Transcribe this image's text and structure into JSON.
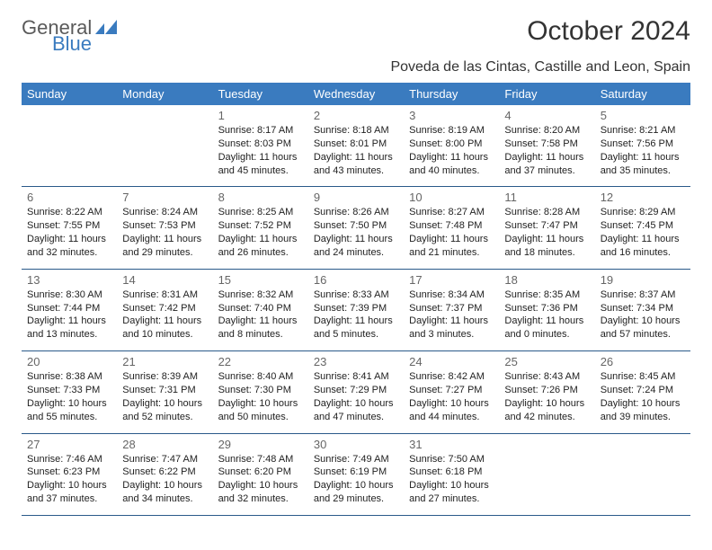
{
  "logo": {
    "word1": "General",
    "word2": "Blue"
  },
  "title": "October 2024",
  "location": "Poveda de las Cintas, Castille and Leon, Spain",
  "colors": {
    "header_bg": "#3a7bbf",
    "header_text": "#ffffff",
    "row_border": "#2a5a8a",
    "logo_gray": "#5a5a5a",
    "logo_blue": "#3a7bbf",
    "body_text": "#222222",
    "daynum_text": "#666666",
    "background": "#ffffff"
  },
  "typography": {
    "title_fontsize": 30,
    "location_fontsize": 16,
    "header_fontsize": 13,
    "daynum_fontsize": 13,
    "cell_fontsize": 11,
    "logo_fontsize": 22
  },
  "day_headers": [
    "Sunday",
    "Monday",
    "Tuesday",
    "Wednesday",
    "Thursday",
    "Friday",
    "Saturday"
  ],
  "label_sunrise": "Sunrise: ",
  "label_sunset": "Sunset: ",
  "label_daylight": "Daylight: ",
  "weeks": [
    [
      null,
      null,
      {
        "n": "1",
        "sr": "8:17 AM",
        "ss": "8:03 PM",
        "dl": "11 hours and 45 minutes."
      },
      {
        "n": "2",
        "sr": "8:18 AM",
        "ss": "8:01 PM",
        "dl": "11 hours and 43 minutes."
      },
      {
        "n": "3",
        "sr": "8:19 AM",
        "ss": "8:00 PM",
        "dl": "11 hours and 40 minutes."
      },
      {
        "n": "4",
        "sr": "8:20 AM",
        "ss": "7:58 PM",
        "dl": "11 hours and 37 minutes."
      },
      {
        "n": "5",
        "sr": "8:21 AM",
        "ss": "7:56 PM",
        "dl": "11 hours and 35 minutes."
      }
    ],
    [
      {
        "n": "6",
        "sr": "8:22 AM",
        "ss": "7:55 PM",
        "dl": "11 hours and 32 minutes."
      },
      {
        "n": "7",
        "sr": "8:24 AM",
        "ss": "7:53 PM",
        "dl": "11 hours and 29 minutes."
      },
      {
        "n": "8",
        "sr": "8:25 AM",
        "ss": "7:52 PM",
        "dl": "11 hours and 26 minutes."
      },
      {
        "n": "9",
        "sr": "8:26 AM",
        "ss": "7:50 PM",
        "dl": "11 hours and 24 minutes."
      },
      {
        "n": "10",
        "sr": "8:27 AM",
        "ss": "7:48 PM",
        "dl": "11 hours and 21 minutes."
      },
      {
        "n": "11",
        "sr": "8:28 AM",
        "ss": "7:47 PM",
        "dl": "11 hours and 18 minutes."
      },
      {
        "n": "12",
        "sr": "8:29 AM",
        "ss": "7:45 PM",
        "dl": "11 hours and 16 minutes."
      }
    ],
    [
      {
        "n": "13",
        "sr": "8:30 AM",
        "ss": "7:44 PM",
        "dl": "11 hours and 13 minutes."
      },
      {
        "n": "14",
        "sr": "8:31 AM",
        "ss": "7:42 PM",
        "dl": "11 hours and 10 minutes."
      },
      {
        "n": "15",
        "sr": "8:32 AM",
        "ss": "7:40 PM",
        "dl": "11 hours and 8 minutes."
      },
      {
        "n": "16",
        "sr": "8:33 AM",
        "ss": "7:39 PM",
        "dl": "11 hours and 5 minutes."
      },
      {
        "n": "17",
        "sr": "8:34 AM",
        "ss": "7:37 PM",
        "dl": "11 hours and 3 minutes."
      },
      {
        "n": "18",
        "sr": "8:35 AM",
        "ss": "7:36 PM",
        "dl": "11 hours and 0 minutes."
      },
      {
        "n": "19",
        "sr": "8:37 AM",
        "ss": "7:34 PM",
        "dl": "10 hours and 57 minutes."
      }
    ],
    [
      {
        "n": "20",
        "sr": "8:38 AM",
        "ss": "7:33 PM",
        "dl": "10 hours and 55 minutes."
      },
      {
        "n": "21",
        "sr": "8:39 AM",
        "ss": "7:31 PM",
        "dl": "10 hours and 52 minutes."
      },
      {
        "n": "22",
        "sr": "8:40 AM",
        "ss": "7:30 PM",
        "dl": "10 hours and 50 minutes."
      },
      {
        "n": "23",
        "sr": "8:41 AM",
        "ss": "7:29 PM",
        "dl": "10 hours and 47 minutes."
      },
      {
        "n": "24",
        "sr": "8:42 AM",
        "ss": "7:27 PM",
        "dl": "10 hours and 44 minutes."
      },
      {
        "n": "25",
        "sr": "8:43 AM",
        "ss": "7:26 PM",
        "dl": "10 hours and 42 minutes."
      },
      {
        "n": "26",
        "sr": "8:45 AM",
        "ss": "7:24 PM",
        "dl": "10 hours and 39 minutes."
      }
    ],
    [
      {
        "n": "27",
        "sr": "7:46 AM",
        "ss": "6:23 PM",
        "dl": "10 hours and 37 minutes."
      },
      {
        "n": "28",
        "sr": "7:47 AM",
        "ss": "6:22 PM",
        "dl": "10 hours and 34 minutes."
      },
      {
        "n": "29",
        "sr": "7:48 AM",
        "ss": "6:20 PM",
        "dl": "10 hours and 32 minutes."
      },
      {
        "n": "30",
        "sr": "7:49 AM",
        "ss": "6:19 PM",
        "dl": "10 hours and 29 minutes."
      },
      {
        "n": "31",
        "sr": "7:50 AM",
        "ss": "6:18 PM",
        "dl": "10 hours and 27 minutes."
      },
      null,
      null
    ]
  ]
}
